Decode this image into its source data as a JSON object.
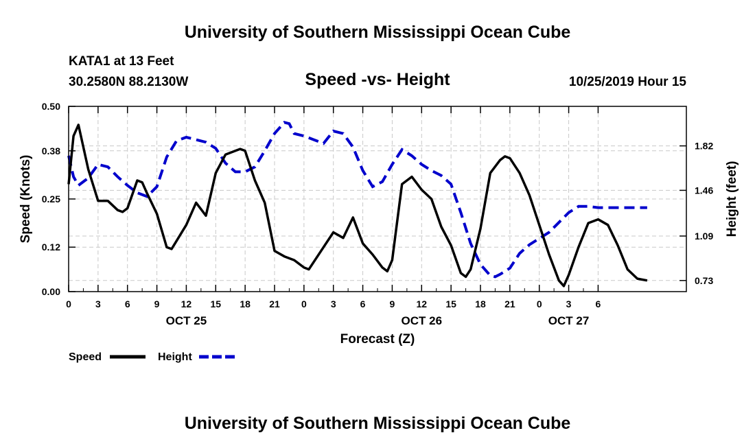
{
  "header": {
    "title": "University of Southern Mississippi Ocean Cube",
    "station": "KATA1 at 13 Feet",
    "coords": "30.2580N 88.2130W",
    "date": "10/25/2019 Hour 15"
  },
  "footer": {
    "title": "University of Southern Mississippi Ocean Cube"
  },
  "legend": {
    "speed": "Speed",
    "height": "Height"
  },
  "colors": {
    "speed": "#000000",
    "height": "#0000cc",
    "grid": "#c8c8c8"
  },
  "chart_data": {
    "type": "line",
    "title": "Speed -vs- Height",
    "xlabel": "Forecast (Z)",
    "ylabel": "Speed (Knots)",
    "y2label": "Height (feet)",
    "xlim": [
      0,
      63
    ],
    "ylim": [
      0,
      0.5
    ],
    "y2lim": [
      0.64,
      2.14
    ],
    "x_ticks": [
      {
        "x": 0,
        "label": "0"
      },
      {
        "x": 3,
        "label": "3"
      },
      {
        "x": 6,
        "label": "6"
      },
      {
        "x": 9,
        "label": "9"
      },
      {
        "x": 12,
        "label": "12"
      },
      {
        "x": 15,
        "label": "15"
      },
      {
        "x": 18,
        "label": "18"
      },
      {
        "x": 21,
        "label": "21"
      },
      {
        "x": 24,
        "label": "0"
      },
      {
        "x": 27,
        "label": "3"
      },
      {
        "x": 30,
        "label": "6"
      },
      {
        "x": 33,
        "label": "9"
      },
      {
        "x": 36,
        "label": "12"
      },
      {
        "x": 39,
        "label": "15"
      },
      {
        "x": 42,
        "label": "18"
      },
      {
        "x": 45,
        "label": "21"
      },
      {
        "x": 48,
        "label": "0"
      },
      {
        "x": 51,
        "label": "3"
      },
      {
        "x": 54,
        "label": "6"
      }
    ],
    "date_labels": [
      {
        "x": 12,
        "label": "OCT 25"
      },
      {
        "x": 36,
        "label": "OCT 26"
      },
      {
        "x": 51,
        "label": "OCT 27"
      }
    ],
    "y_ticks": [
      {
        "y": 0.0,
        "label": "0.00"
      },
      {
        "y": 0.12,
        "label": "0.12"
      },
      {
        "y": 0.25,
        "label": "0.25"
      },
      {
        "y": 0.38,
        "label": "0.38"
      },
      {
        "y": 0.5,
        "label": "0.50"
      }
    ],
    "y2_ticks": [
      {
        "y": 0.73,
        "label": "0.73"
      },
      {
        "y": 1.09,
        "label": "1.09"
      },
      {
        "y": 1.46,
        "label": "1.46"
      },
      {
        "y": 1.82,
        "label": "1.82"
      }
    ],
    "series": [
      {
        "name": "Speed",
        "axis": "left",
        "points": [
          [
            0,
            0.29
          ],
          [
            0.5,
            0.42
          ],
          [
            1,
            0.45
          ],
          [
            2,
            0.33
          ],
          [
            3,
            0.245
          ],
          [
            4,
            0.245
          ],
          [
            5,
            0.22
          ],
          [
            5.5,
            0.215
          ],
          [
            6,
            0.225
          ],
          [
            7,
            0.3
          ],
          [
            7.5,
            0.295
          ],
          [
            8,
            0.265
          ],
          [
            9,
            0.21
          ],
          [
            10,
            0.12
          ],
          [
            10.5,
            0.115
          ],
          [
            12,
            0.18
          ],
          [
            13,
            0.24
          ],
          [
            14,
            0.205
          ],
          [
            15,
            0.32
          ],
          [
            16,
            0.37
          ],
          [
            17,
            0.38
          ],
          [
            17.5,
            0.385
          ],
          [
            18,
            0.38
          ],
          [
            19,
            0.3
          ],
          [
            20,
            0.24
          ],
          [
            21,
            0.11
          ],
          [
            22,
            0.095
          ],
          [
            23,
            0.085
          ],
          [
            24,
            0.065
          ],
          [
            24.5,
            0.06
          ],
          [
            25,
            0.08
          ],
          [
            26,
            0.12
          ],
          [
            27,
            0.16
          ],
          [
            28,
            0.145
          ],
          [
            29,
            0.2
          ],
          [
            30,
            0.13
          ],
          [
            31,
            0.1
          ],
          [
            32,
            0.065
          ],
          [
            32.5,
            0.055
          ],
          [
            33,
            0.085
          ],
          [
            34,
            0.29
          ],
          [
            35,
            0.31
          ],
          [
            36,
            0.275
          ],
          [
            37,
            0.25
          ],
          [
            38,
            0.175
          ],
          [
            39,
            0.125
          ],
          [
            40,
            0.05
          ],
          [
            40.5,
            0.04
          ],
          [
            41,
            0.06
          ],
          [
            42,
            0.17
          ],
          [
            43,
            0.32
          ],
          [
            44,
            0.355
          ],
          [
            44.5,
            0.365
          ],
          [
            45,
            0.36
          ],
          [
            46,
            0.32
          ],
          [
            47,
            0.26
          ],
          [
            48,
            0.18
          ],
          [
            49,
            0.1
          ],
          [
            50,
            0.03
          ],
          [
            50.5,
            0.015
          ],
          [
            51,
            0.045
          ],
          [
            52,
            0.12
          ],
          [
            53,
            0.185
          ],
          [
            54,
            0.195
          ],
          [
            55,
            0.18
          ],
          [
            56,
            0.125
          ],
          [
            57,
            0.06
          ],
          [
            58,
            0.035
          ],
          [
            59,
            0.03
          ]
        ]
      },
      {
        "name": "Height",
        "axis": "right",
        "points": [
          [
            0,
            1.74
          ],
          [
            0.5,
            1.57
          ],
          [
            1,
            1.5
          ],
          [
            2,
            1.56
          ],
          [
            3,
            1.67
          ],
          [
            4,
            1.65
          ],
          [
            5,
            1.57
          ],
          [
            6,
            1.5
          ],
          [
            7,
            1.44
          ],
          [
            8,
            1.41
          ],
          [
            9,
            1.49
          ],
          [
            10,
            1.73
          ],
          [
            11,
            1.86
          ],
          [
            12,
            1.89
          ],
          [
            13,
            1.87
          ],
          [
            14,
            1.85
          ],
          [
            15,
            1.8
          ],
          [
            16,
            1.68
          ],
          [
            17,
            1.61
          ],
          [
            18,
            1.61
          ],
          [
            19,
            1.65
          ],
          [
            20,
            1.78
          ],
          [
            21,
            1.92
          ],
          [
            22,
            2.01
          ],
          [
            22.5,
            2.0
          ],
          [
            23,
            1.92
          ],
          [
            24,
            1.9
          ],
          [
            25,
            1.87
          ],
          [
            26,
            1.84
          ],
          [
            27,
            1.94
          ],
          [
            28,
            1.92
          ],
          [
            29,
            1.81
          ],
          [
            30,
            1.62
          ],
          [
            31,
            1.49
          ],
          [
            32,
            1.53
          ],
          [
            33,
            1.67
          ],
          [
            34,
            1.79
          ],
          [
            35,
            1.74
          ],
          [
            36,
            1.67
          ],
          [
            37,
            1.62
          ],
          [
            38,
            1.58
          ],
          [
            39,
            1.51
          ],
          [
            40,
            1.28
          ],
          [
            41,
            1.03
          ],
          [
            42,
            0.86
          ],
          [
            43,
            0.77
          ],
          [
            43.5,
            0.76
          ],
          [
            44,
            0.78
          ],
          [
            45,
            0.83
          ],
          [
            46,
            0.95
          ],
          [
            47,
            1.02
          ],
          [
            48,
            1.07
          ],
          [
            49,
            1.12
          ],
          [
            50,
            1.2
          ],
          [
            51,
            1.28
          ],
          [
            52,
            1.33
          ],
          [
            53,
            1.33
          ],
          [
            54,
            1.32
          ],
          [
            55,
            1.32
          ],
          [
            59,
            1.32
          ]
        ]
      }
    ]
  }
}
